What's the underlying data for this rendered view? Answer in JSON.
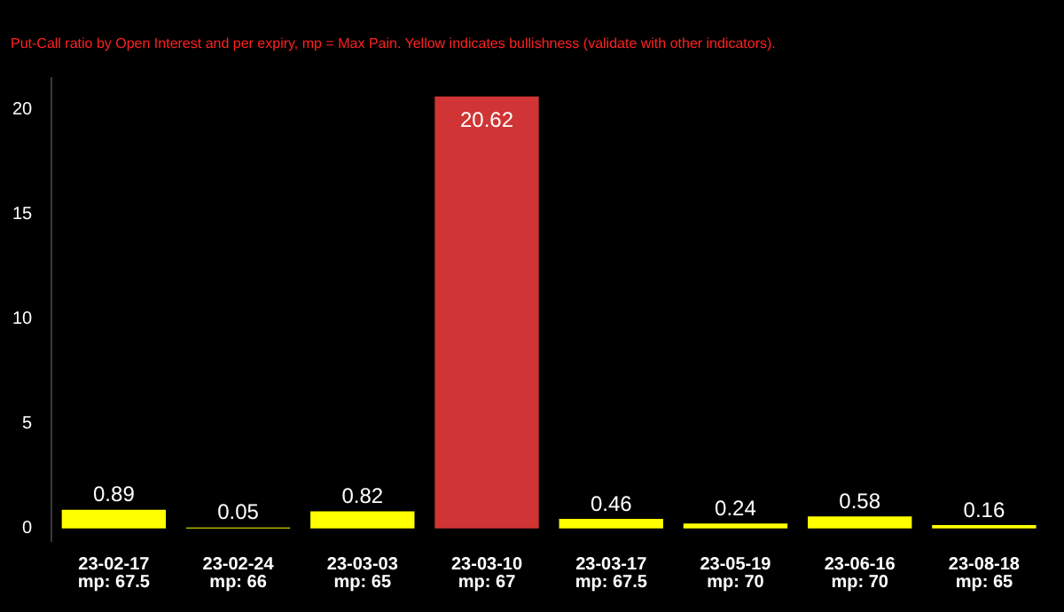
{
  "chart_data": {
    "type": "bar",
    "subtitle": "Put-Call ratio by Open Interest and per expiry, mp = Max Pain. Yellow indicates bullishness (validate with other indicators).",
    "categories": [
      "23-02-17\nmp: 67.5",
      "23-02-24\nmp: 66",
      "23-03-03\nmp: 65",
      "23-03-10\nmp: 67",
      "23-03-17\nmp: 67.5",
      "23-05-19\nmp: 70",
      "23-06-16\nmp: 70",
      "23-08-18\nmp: 65"
    ],
    "values": [
      0.89,
      0.05,
      0.82,
      20.62,
      0.46,
      0.24,
      0.58,
      0.16
    ],
    "colors": [
      "#ffff00",
      "#ffff00",
      "#ffff00",
      "#d03434",
      "#ffff00",
      "#ffff00",
      "#ffff00",
      "#ffff00"
    ],
    "ylim": [
      -0.6,
      21.5
    ],
    "yticks": [
      0,
      5,
      10,
      15,
      20
    ],
    "grid": false,
    "legend": false,
    "data_labels": true
  }
}
